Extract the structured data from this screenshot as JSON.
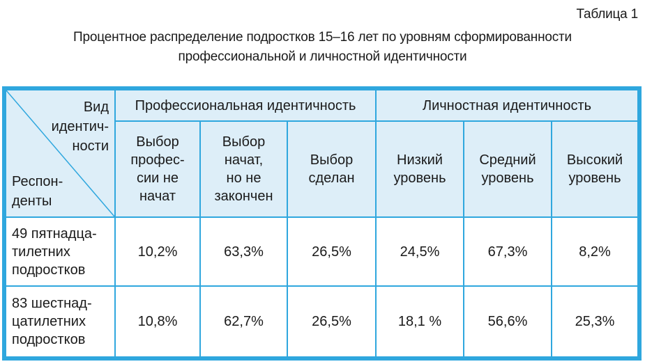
{
  "table_label": "Таблица 1",
  "caption": {
    "line1": "Процентное распределение подростков 15–16 лет по уровням сформированности",
    "line2": "профессиональной и личностной идентичности"
  },
  "corner": {
    "top_lines": [
      "Вид",
      "идентич-",
      "ности"
    ],
    "bottom_lines": [
      "Респон-",
      "денты"
    ]
  },
  "groups": {
    "professional": "Профессиональная идентичность",
    "personal": "Личностная идентичность"
  },
  "columns": [
    [
      "Выбор",
      "профес-",
      "сии не",
      "начат"
    ],
    [
      "Выбор",
      "начат,",
      "но не",
      "закончен"
    ],
    [
      "Выбор",
      "сделан"
    ],
    [
      "Низкий",
      "уровень"
    ],
    [
      "Средний",
      "уровень"
    ],
    [
      "Высокий",
      "уровень"
    ]
  ],
  "rows": [
    {
      "label_lines": [
        "49 пятнадца-",
        "тилетних",
        "подростков"
      ],
      "values": [
        "10,2%",
        "63,3%",
        "26,5%",
        "24,5%",
        "67,3%",
        "8,2%"
      ]
    },
    {
      "label_lines": [
        "83 шестнад-",
        "цатилетних",
        "подростков"
      ],
      "values": [
        "10,8%",
        "62,7%",
        "26,5%",
        "18,1 %",
        "56,6%",
        "25,3%"
      ]
    }
  ],
  "colors": {
    "border": "#2fa7de",
    "header_fill": "#ddeef8",
    "text": "#1a1a1a"
  }
}
